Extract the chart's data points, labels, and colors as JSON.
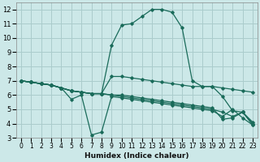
{
  "xlabel": "Humidex (Indice chaleur)",
  "background_color": "#cce8e8",
  "grid_color": "#aacccc",
  "line_color": "#1a6b5a",
  "xlim": [
    -0.5,
    23.5
  ],
  "ylim": [
    3,
    12.5
  ],
  "xticks": [
    0,
    1,
    2,
    3,
    4,
    5,
    6,
    7,
    8,
    9,
    10,
    11,
    12,
    13,
    14,
    15,
    16,
    17,
    18,
    19,
    20,
    21,
    22,
    23
  ],
  "yticks": [
    3,
    4,
    5,
    6,
    7,
    8,
    9,
    10,
    11,
    12
  ],
  "series": [
    [
      7.0,
      6.9,
      6.8,
      6.7,
      6.5,
      6.3,
      6.2,
      6.1,
      6.1,
      7.3,
      7.3,
      7.2,
      7.1,
      7.0,
      6.9,
      6.8,
      6.7,
      6.6,
      6.6,
      6.6,
      6.5,
      6.4,
      6.3,
      6.2
    ],
    [
      7.0,
      6.9,
      6.8,
      6.7,
      6.5,
      5.7,
      6.0,
      3.2,
      3.4,
      5.9,
      5.8,
      5.7,
      5.6,
      5.5,
      5.4,
      5.3,
      5.2,
      5.1,
      5.0,
      4.9,
      4.5,
      5.0,
      4.4,
      3.9
    ],
    [
      7.0,
      6.9,
      6.8,
      6.7,
      6.5,
      6.3,
      6.2,
      6.1,
      6.1,
      9.5,
      10.9,
      11.0,
      11.5,
      12.0,
      12.0,
      11.8,
      10.7,
      7.0,
      6.6,
      6.6,
      5.9,
      4.9,
      4.8,
      4.1
    ],
    [
      7.0,
      6.9,
      6.8,
      6.7,
      6.5,
      6.3,
      6.2,
      6.1,
      6.1,
      6.0,
      6.0,
      5.9,
      5.8,
      5.7,
      5.6,
      5.5,
      5.4,
      5.3,
      5.2,
      5.1,
      4.3,
      4.4,
      4.8,
      3.9
    ],
    [
      7.0,
      6.9,
      6.8,
      6.7,
      6.5,
      6.3,
      6.2,
      6.1,
      6.1,
      6.0,
      5.9,
      5.8,
      5.7,
      5.6,
      5.5,
      5.4,
      5.3,
      5.2,
      5.1,
      5.0,
      4.8,
      4.5,
      4.8,
      4.0
    ]
  ]
}
